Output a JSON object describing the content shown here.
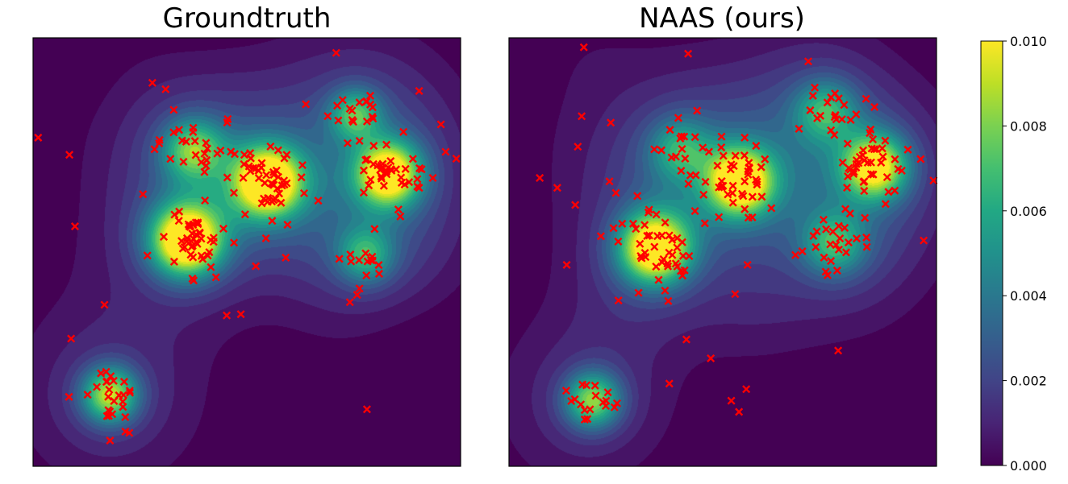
{
  "chart_data": [
    {
      "type": "heatmap",
      "title": "Groundtruth",
      "xlabel": "",
      "ylabel": "",
      "axis_ticks": "none",
      "value_range": [
        0,
        0.01
      ],
      "colormap": "viridis",
      "marker": {
        "symbol": "x",
        "color": "#ff0000"
      },
      "clusters": [
        {
          "cx": 0.358,
          "cy": 0.528,
          "peak": 0.0112,
          "sigma": 0.058,
          "n": 45,
          "spread": 0.045
        },
        {
          "cx": 0.549,
          "cy": 0.665,
          "peak": 0.0108,
          "sigma": 0.057,
          "n": 45,
          "spread": 0.045
        },
        {
          "cx": 0.831,
          "cy": 0.683,
          "peak": 0.0098,
          "sigma": 0.052,
          "n": 38,
          "spread": 0.045
        },
        {
          "cx": 0.374,
          "cy": 0.739,
          "peak": 0.0058,
          "sigma": 0.05,
          "n": 25,
          "spread": 0.04
        },
        {
          "cx": 0.753,
          "cy": 0.822,
          "peak": 0.0052,
          "sigma": 0.042,
          "n": 20,
          "spread": 0.03
        },
        {
          "cx": 0.777,
          "cy": 0.493,
          "peak": 0.0046,
          "sigma": 0.045,
          "n": 14,
          "spread": 0.035
        },
        {
          "cx": 0.179,
          "cy": 0.167,
          "peak": 0.0078,
          "sigma": 0.045,
          "n": 24,
          "spread": 0.035
        }
      ],
      "background": {
        "level": 0.0014,
        "noise": 0.0003
      },
      "scattered_points": [
        [
          0.012,
          0.767
        ],
        [
          0.085,
          0.727
        ],
        [
          0.098,
          0.56
        ],
        [
          0.089,
          0.298
        ],
        [
          0.084,
          0.162
        ],
        [
          0.167,
          0.377
        ],
        [
          0.18,
          0.06
        ],
        [
          0.216,
          0.081
        ],
        [
          0.257,
          0.635
        ],
        [
          0.279,
          0.895
        ],
        [
          0.284,
          0.74
        ],
        [
          0.31,
          0.88
        ],
        [
          0.329,
          0.832
        ],
        [
          0.341,
          0.573
        ],
        [
          0.47,
          0.522
        ],
        [
          0.486,
          0.355
        ],
        [
          0.521,
          0.467
        ],
        [
          0.591,
          0.487
        ],
        [
          0.638,
          0.845
        ],
        [
          0.667,
          0.62
        ],
        [
          0.709,
          0.965
        ],
        [
          0.741,
          0.383
        ],
        [
          0.758,
          0.4
        ],
        [
          0.781,
          0.133
        ],
        [
          0.903,
          0.65
        ],
        [
          0.954,
          0.798
        ],
        [
          0.965,
          0.734
        ],
        [
          0.99,
          0.718
        ],
        [
          0.453,
          0.352
        ],
        [
          0.903,
          0.876
        ],
        [
          0.225,
          0.078
        ],
        [
          0.505,
          0.7
        ],
        [
          0.63,
          0.703
        ],
        [
          0.58,
          0.615
        ]
      ]
    },
    {
      "type": "heatmap",
      "title": "NAAS (ours)",
      "xlabel": "",
      "ylabel": "",
      "axis_ticks": "none",
      "value_range": [
        0,
        0.01
      ],
      "colormap": "viridis",
      "marker": {
        "symbol": "x",
        "color": "#ff0000"
      },
      "clusters": [
        {
          "cx": 0.34,
          "cy": 0.51,
          "peak": 0.0106,
          "sigma": 0.058,
          "n": 42,
          "spread": 0.045
        },
        {
          "cx": 0.54,
          "cy": 0.665,
          "peak": 0.0102,
          "sigma": 0.055,
          "n": 42,
          "spread": 0.045
        },
        {
          "cx": 0.855,
          "cy": 0.7,
          "peak": 0.0088,
          "sigma": 0.052,
          "n": 38,
          "spread": 0.045
        },
        {
          "cx": 0.74,
          "cy": 0.83,
          "peak": 0.0044,
          "sigma": 0.05,
          "n": 22,
          "spread": 0.04
        },
        {
          "cx": 0.76,
          "cy": 0.52,
          "peak": 0.0046,
          "sigma": 0.05,
          "n": 26,
          "spread": 0.04
        },
        {
          "cx": 0.4,
          "cy": 0.74,
          "peak": 0.004,
          "sigma": 0.05,
          "n": 18,
          "spread": 0.04
        },
        {
          "cx": 0.195,
          "cy": 0.155,
          "peak": 0.007,
          "sigma": 0.045,
          "n": 18,
          "spread": 0.035
        }
      ],
      "background": {
        "level": 0.0014,
        "noise": 0.0003
      },
      "scattered_points": [
        [
          0.175,
          0.978
        ],
        [
          0.419,
          0.963
        ],
        [
          0.17,
          0.817
        ],
        [
          0.161,
          0.746
        ],
        [
          0.238,
          0.802
        ],
        [
          0.113,
          0.65
        ],
        [
          0.155,
          0.61
        ],
        [
          0.135,
          0.47
        ],
        [
          0.072,
          0.673
        ],
        [
          0.235,
          0.665
        ],
        [
          0.25,
          0.638
        ],
        [
          0.215,
          0.537
        ],
        [
          0.256,
          0.387
        ],
        [
          0.415,
          0.296
        ],
        [
          0.365,
          0.41
        ],
        [
          0.472,
          0.252
        ],
        [
          0.529,
          0.402
        ],
        [
          0.558,
          0.47
        ],
        [
          0.72,
          0.548
        ],
        [
          0.77,
          0.27
        ],
        [
          0.873,
          0.742
        ],
        [
          0.963,
          0.717
        ],
        [
          0.97,
          0.527
        ],
        [
          0.993,
          0.667
        ],
        [
          0.35,
          0.435
        ],
        [
          0.555,
          0.18
        ],
        [
          0.52,
          0.153
        ],
        [
          0.538,
          0.127
        ],
        [
          0.375,
          0.193
        ],
        [
          0.7,
          0.945
        ],
        [
          0.578,
          0.748
        ],
        [
          0.44,
          0.83
        ],
        [
          0.88,
          0.76
        ],
        [
          0.303,
          0.405
        ]
      ]
    }
  ],
  "colorbar": {
    "ticks": [
      "0.000",
      "0.002",
      "0.004",
      "0.006",
      "0.008",
      "0.010"
    ],
    "tick_values": [
      0.0,
      0.002,
      0.004,
      0.006,
      0.008,
      0.01
    ],
    "range": [
      0,
      0.01
    ],
    "colormap": "viridis"
  }
}
